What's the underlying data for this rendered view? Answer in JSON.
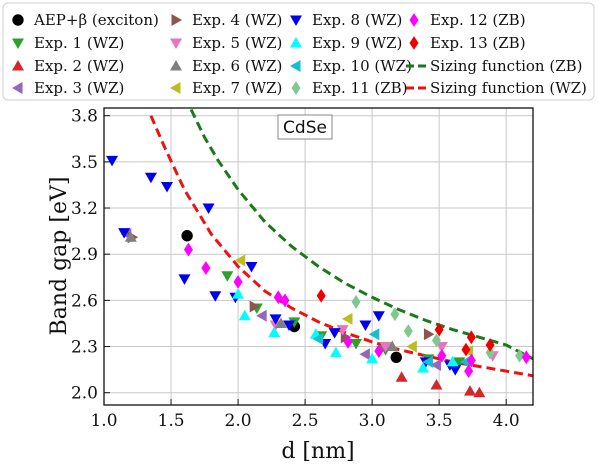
{
  "chart_data": {
    "type": "scatter",
    "panel_label": "CdSe",
    "xlabel": "d [nm]",
    "ylabel": "Band gap [eV]",
    "xlim": [
      1.0,
      4.2
    ],
    "ylim": [
      1.92,
      3.85
    ],
    "xticks": [
      "1.0",
      "1.5",
      "2.0",
      "2.5",
      "3.0",
      "3.5",
      "4.0"
    ],
    "yticks": [
      "2.0",
      "2.3",
      "2.6",
      "2.9",
      "3.2",
      "3.5",
      "3.8"
    ],
    "grid": true,
    "legend_placement": "top (outside plot)",
    "series": [
      {
        "name": "AEP+β (exciton)",
        "marker": "circle",
        "color": "#000000",
        "points": [
          [
            1.62,
            3.02
          ],
          [
            2.42,
            2.43
          ],
          [
            3.18,
            2.23
          ]
        ]
      },
      {
        "name": "Exp. 1 (WZ)",
        "marker": "triangle-down",
        "color": "#2ca02c",
        "points": [
          [
            1.92,
            2.76
          ],
          [
            2.14,
            2.55
          ],
          [
            2.42,
            2.46
          ],
          [
            2.62,
            2.37
          ],
          [
            2.88,
            2.32
          ],
          [
            3.1,
            2.28
          ],
          [
            3.42,
            2.22
          ],
          [
            3.65,
            2.2
          ]
        ]
      },
      {
        "name": "Exp. 2 (WZ)",
        "marker": "triangle-up",
        "color": "#d62728",
        "points": [
          [
            3.22,
            2.1
          ],
          [
            3.48,
            2.05
          ],
          [
            3.73,
            2.01
          ],
          [
            3.8,
            2.0
          ]
        ]
      },
      {
        "name": "Exp. 3 (WZ)",
        "marker": "triangle-left",
        "color": "#9467bd",
        "points": [
          [
            1.17,
            3.03
          ],
          [
            2.18,
            2.5
          ],
          [
            2.95,
            2.25
          ],
          [
            3.48,
            2.18
          ]
        ]
      },
      {
        "name": "Exp. 4 (WZ)",
        "marker": "triangle-right",
        "color": "#8c564b",
        "points": [
          [
            1.21,
            3.01
          ],
          [
            2.12,
            2.56
          ],
          [
            2.8,
            2.36
          ],
          [
            3.42,
            2.38
          ]
        ]
      },
      {
        "name": "Exp. 5 (WZ)",
        "marker": "triangle-down",
        "color": "#e377c2",
        "points": [
          [
            2.28,
            2.44
          ],
          [
            2.78,
            2.41
          ],
          [
            3.1,
            2.3
          ],
          [
            3.52,
            2.3
          ],
          [
            3.9,
            2.24
          ]
        ]
      },
      {
        "name": "Exp. 6 (WZ)",
        "marker": "triangle-up",
        "color": "#7f7f7f",
        "points": [
          [
            1.2,
            3.01
          ],
          [
            2.32,
            2.45
          ],
          [
            3.15,
            2.3
          ]
        ]
      },
      {
        "name": "Exp. 7 (WZ)",
        "marker": "triangle-left",
        "color": "#bcbd22",
        "points": [
          [
            2.02,
            2.86
          ],
          [
            2.82,
            2.48
          ],
          [
            3.3,
            2.3
          ],
          [
            3.72,
            2.27
          ]
        ]
      },
      {
        "name": "Exp. 8 (WZ)",
        "marker": "triangle-down",
        "color": "#0000ee",
        "points": [
          [
            1.06,
            3.51
          ],
          [
            1.15,
            3.04
          ],
          [
            1.35,
            3.4
          ],
          [
            1.47,
            3.34
          ],
          [
            1.6,
            2.74
          ],
          [
            1.78,
            3.2
          ],
          [
            1.83,
            2.63
          ],
          [
            1.98,
            2.62
          ],
          [
            2.1,
            2.82
          ],
          [
            2.28,
            2.48
          ],
          [
            2.38,
            2.44
          ],
          [
            2.65,
            2.32
          ],
          [
            2.72,
            2.39
          ],
          [
            2.95,
            2.44
          ],
          [
            3.05,
            2.5
          ],
          [
            3.4,
            2.2
          ],
          [
            3.58,
            2.18
          ],
          [
            3.62,
            2.15
          ]
        ]
      },
      {
        "name": "Exp. 9 (WZ)",
        "marker": "triangle-up",
        "color": "#00ffff",
        "points": [
          [
            2.0,
            2.64
          ],
          [
            2.05,
            2.5
          ],
          [
            2.27,
            2.39
          ],
          [
            2.58,
            2.38
          ],
          [
            2.73,
            2.26
          ],
          [
            3.0,
            2.22
          ],
          [
            3.38,
            2.16
          ],
          [
            3.6,
            2.2
          ]
        ]
      },
      {
        "name": "Exp. 10 (WZ)",
        "marker": "triangle-left",
        "color": "#17becf",
        "points": [
          [
            2.6,
            2.35
          ],
          [
            3.02,
            2.38
          ],
          [
            3.42,
            2.2
          ],
          [
            3.7,
            2.2
          ]
        ]
      },
      {
        "name": "Exp. 11 (ZB)",
        "marker": "diamond",
        "color": "#80c890",
        "points": [
          [
            2.88,
            2.59
          ],
          [
            3.17,
            2.51
          ],
          [
            3.27,
            2.4
          ],
          [
            3.48,
            2.34
          ],
          [
            3.88,
            2.26
          ],
          [
            4.1,
            2.24
          ]
        ]
      },
      {
        "name": "Exp. 12 (ZB)",
        "marker": "diamond",
        "color": "#ff00ff",
        "points": [
          [
            1.63,
            2.93
          ],
          [
            1.76,
            2.81
          ],
          [
            2.0,
            2.72
          ],
          [
            2.3,
            2.62
          ],
          [
            2.35,
            2.6
          ],
          [
            2.82,
            2.33
          ],
          [
            3.05,
            2.27
          ],
          [
            3.52,
            2.24
          ],
          [
            3.72,
            2.14
          ],
          [
            3.74,
            2.21
          ],
          [
            4.15,
            2.23
          ]
        ]
      },
      {
        "name": "Exp. 13 (ZB)",
        "marker": "diamond",
        "color": "#ee0000",
        "points": [
          [
            2.62,
            2.63
          ],
          [
            3.5,
            2.41
          ],
          [
            3.74,
            2.36
          ],
          [
            3.7,
            2.28
          ],
          [
            3.88,
            2.31
          ]
        ]
      }
    ],
    "curves": [
      {
        "name": "Sizing function (ZB)",
        "color": "#1a7a1a",
        "style": "dashed",
        "x": [
          1.65,
          1.75,
          1.85,
          2.0,
          2.2,
          2.4,
          2.6,
          2.8,
          3.0,
          3.2,
          3.4,
          3.6,
          3.8,
          4.0,
          4.2
        ],
        "y": [
          3.84,
          3.66,
          3.51,
          3.32,
          3.11,
          2.95,
          2.82,
          2.71,
          2.62,
          2.54,
          2.47,
          2.41,
          2.36,
          2.31,
          2.22
        ]
      },
      {
        "name": "Sizing function (WZ)",
        "color": "#ee1111",
        "style": "dashed",
        "x": [
          1.35,
          1.45,
          1.6,
          1.8,
          2.0,
          2.2,
          2.4,
          2.6,
          2.8,
          3.0,
          3.2,
          3.4,
          3.6,
          3.8,
          4.0,
          4.2
        ],
        "y": [
          3.8,
          3.6,
          3.32,
          3.03,
          2.82,
          2.66,
          2.55,
          2.46,
          2.39,
          2.33,
          2.28,
          2.24,
          2.2,
          2.17,
          2.14,
          2.11
        ]
      }
    ]
  }
}
